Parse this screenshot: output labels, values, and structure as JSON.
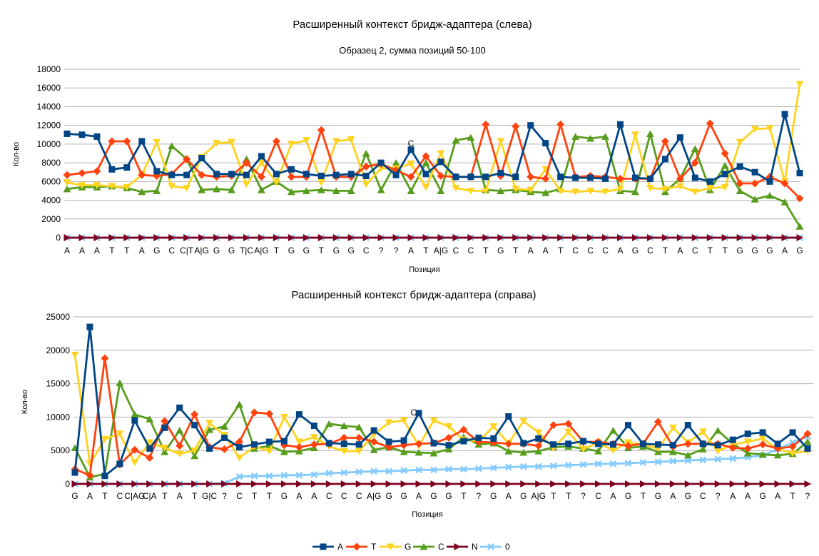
{
  "legend": [
    "A",
    "T",
    "G",
    "C",
    "N",
    "0"
  ],
  "colors": {
    "A": "#004586",
    "T": "#ff420e",
    "G": "#ffd320",
    "C": "#579d1c",
    "N": "#7e0021",
    "0": "#83caff"
  },
  "chart_data": [
    {
      "type": "line",
      "title": "Расширенный контекст бридж-адаптера (слева)",
      "subtitle": "Образец 2, сумма позиций 50-100",
      "xlabel": "Позиция",
      "ylabel": "Кол-во",
      "ylim": [
        0,
        18000
      ],
      "yticks": [
        0,
        2000,
        4000,
        6000,
        8000,
        10000,
        12000,
        14000,
        16000,
        18000
      ],
      "grid": true,
      "annotation": "C",
      "categories": [
        "A",
        "A",
        "A",
        "T",
        "T",
        "A",
        "G",
        "C",
        "C|T",
        "A|G",
        "G",
        "G",
        "T|C",
        "A|G",
        "T",
        "G",
        "G",
        "T",
        "G",
        "G",
        "C",
        "?",
        "?",
        "A",
        "T",
        "A|G",
        "C",
        "C",
        "T",
        "G",
        "T",
        "A",
        "A",
        "T",
        "C",
        "C",
        "C",
        "A",
        "G",
        "C",
        "T",
        "A",
        "C",
        "T",
        "T",
        "G",
        "G",
        "G",
        "A",
        "G"
      ],
      "series": [
        {
          "name": "A",
          "values": [
            11100,
            11000,
            10800,
            7300,
            7500,
            10300,
            7100,
            6700,
            6700,
            8500,
            6800,
            6800,
            6700,
            8700,
            6800,
            7300,
            6800,
            6600,
            6700,
            6800,
            6600,
            8000,
            6700,
            9400,
            6800,
            8100,
            6500,
            6500,
            6500,
            6900,
            6500,
            12000,
            10100,
            6500,
            6400,
            6400,
            6300,
            12100,
            6400,
            6300,
            8400,
            10700,
            6400,
            6000,
            6800,
            7600,
            7000,
            6000,
            13200,
            6900
          ]
        },
        {
          "name": "T",
          "values": [
            6700,
            6900,
            7100,
            10300,
            10300,
            6700,
            6600,
            6800,
            8400,
            6700,
            6500,
            6600,
            8000,
            6500,
            10300,
            6500,
            6500,
            11500,
            6500,
            6500,
            7600,
            7900,
            7200,
            6500,
            8700,
            6600,
            6500,
            6500,
            12100,
            6600,
            11900,
            6500,
            6300,
            12100,
            6500,
            6600,
            6500,
            6300,
            6300,
            6300,
            10300,
            6300,
            8000,
            12200,
            9000,
            5800,
            5800,
            6500,
            5800,
            4200
          ]
        },
        {
          "name": "G",
          "values": [
            5900,
            5600,
            5600,
            5500,
            5400,
            6700,
            10200,
            5500,
            5300,
            8600,
            10100,
            10200,
            5700,
            8000,
            5900,
            10000,
            10400,
            5900,
            10300,
            10500,
            5700,
            7400,
            7400,
            7900,
            5400,
            9000,
            5300,
            5000,
            5000,
            10300,
            5200,
            5100,
            7300,
            5000,
            4900,
            5000,
            4900,
            5200,
            11000,
            5300,
            5200,
            5500,
            4900,
            5300,
            5400,
            10200,
            11600,
            11700,
            6000,
            16400
          ]
        },
        {
          "name": "C",
          "values": [
            5200,
            5400,
            5400,
            5500,
            5300,
            4900,
            5000,
            9800,
            8400,
            5100,
            5200,
            5100,
            8400,
            5100,
            6000,
            4900,
            5000,
            5100,
            5000,
            5000,
            9000,
            5100,
            8000,
            5000,
            8000,
            5000,
            10400,
            10700,
            5100,
            5000,
            5100,
            4900,
            4800,
            5200,
            10800,
            10600,
            10800,
            5000,
            4900,
            11100,
            4900,
            6300,
            9500,
            5100,
            7700,
            5000,
            4100,
            4500,
            3800,
            1200
          ]
        },
        {
          "name": "N",
          "values": [
            0,
            0,
            0,
            0,
            0,
            0,
            0,
            0,
            0,
            0,
            0,
            0,
            0,
            0,
            0,
            0,
            0,
            0,
            0,
            0,
            0,
            0,
            0,
            0,
            0,
            0,
            0,
            0,
            0,
            0,
            0,
            0,
            0,
            0,
            0,
            0,
            0,
            0,
            0,
            0,
            0,
            0,
            0,
            0,
            0,
            0,
            0,
            0,
            0,
            0
          ]
        },
        {
          "name": "0",
          "values": [
            0,
            0,
            0,
            0,
            0,
            0,
            0,
            0,
            0,
            0,
            0,
            0,
            0,
            0,
            0,
            0,
            0,
            0,
            0,
            0,
            0,
            0,
            0,
            0,
            0,
            0,
            0,
            0,
            0,
            0,
            0,
            0,
            0,
            0,
            0,
            0,
            0,
            0,
            0,
            0,
            0,
            0,
            0,
            0,
            0,
            0,
            0,
            0,
            0,
            0
          ]
        }
      ]
    },
    {
      "type": "line",
      "title": "Расширенный контекст бридж-адаптера (справа)",
      "xlabel": "Позиция",
      "ylabel": "Кол-во",
      "ylim": [
        0,
        25000
      ],
      "yticks": [
        0,
        5000,
        10000,
        15000,
        20000,
        25000
      ],
      "grid": true,
      "annotation": "C",
      "categories": [
        "G",
        "A",
        "T",
        "C",
        "C|AG",
        "C|A",
        "T",
        "A",
        "T",
        "G|C",
        "?",
        "C",
        "T",
        "T",
        "G",
        "A",
        "A",
        "C",
        "C",
        "C",
        "A|G",
        "G",
        "G",
        "A",
        "G",
        "G",
        "T",
        "?",
        "G",
        "A",
        "G",
        "A|G",
        "T",
        "T",
        "?",
        "C",
        "A",
        "G",
        "T",
        "G",
        "A",
        "G",
        "C",
        "?",
        "A",
        "A",
        "G",
        "A",
        "T",
        "?"
      ],
      "series": [
        {
          "name": "A",
          "values": [
            1700,
            23500,
            1200,
            3000,
            9500,
            5300,
            8400,
            11400,
            8800,
            5300,
            6900,
            5500,
            5900,
            6300,
            6400,
            10400,
            8700,
            6100,
            6000,
            5900,
            8000,
            6300,
            6500,
            10600,
            6100,
            5800,
            6400,
            6900,
            6800,
            10100,
            6100,
            6800,
            5900,
            6000,
            6400,
            6000,
            5900,
            8800,
            6000,
            5900,
            5800,
            8800,
            6000,
            5800,
            6600,
            7500,
            7700,
            6000,
            7700,
            5300
          ]
        },
        {
          "name": "T",
          "values": [
            2200,
            1300,
            18800,
            2900,
            5100,
            3900,
            9400,
            5700,
            10400,
            5500,
            5200,
            6300,
            10700,
            10500,
            5800,
            5500,
            5900,
            6000,
            6900,
            6900,
            6300,
            5500,
            5800,
            6000,
            6100,
            6900,
            8100,
            6300,
            6200,
            6000,
            6000,
            5700,
            8800,
            9000,
            6300,
            6300,
            6000,
            5700,
            6000,
            9300,
            5600,
            6000,
            6000,
            6000,
            5400,
            5300,
            5900,
            5300,
            5600,
            7500
          ]
        },
        {
          "name": "G",
          "values": [
            19300,
            3000,
            6700,
            7500,
            3200,
            6200,
            5400,
            4500,
            5000,
            9100,
            7300,
            3900,
            5600,
            4900,
            10000,
            6300,
            7000,
            5600,
            4900,
            4900,
            7400,
            9200,
            9500,
            5700,
            9500,
            8600,
            6600,
            6400,
            8600,
            6100,
            9400,
            7700,
            5300,
            7800,
            5200,
            6200,
            5000,
            6200,
            5900,
            5300,
            8400,
            6200,
            7800,
            4900,
            5900,
            6300,
            6800,
            5200,
            4600,
            4900
          ]
        },
        {
          "name": "C",
          "values": [
            5400,
            1000,
            1500,
            15100,
            10400,
            9700,
            4800,
            8000,
            4200,
            8100,
            8600,
            11900,
            5300,
            5700,
            4800,
            4900,
            5400,
            9000,
            8700,
            8500,
            5100,
            5500,
            4800,
            4700,
            4600,
            5200,
            7000,
            5900,
            6100,
            4900,
            4700,
            4900,
            5500,
            5600,
            5300,
            4900,
            8000,
            5400,
            5600,
            4800,
            4800,
            4300,
            5200,
            8000,
            6000,
            4600,
            4400,
            4300,
            4500,
            6300
          ]
        },
        {
          "name": "N",
          "values": [
            0,
            0,
            0,
            0,
            0,
            0,
            0,
            0,
            0,
            0,
            0,
            0,
            0,
            0,
            0,
            0,
            0,
            0,
            0,
            0,
            0,
            0,
            0,
            0,
            0,
            0,
            0,
            0,
            0,
            0,
            0,
            0,
            0,
            0,
            0,
            0,
            0,
            0,
            0,
            0,
            0,
            0,
            0,
            0,
            0,
            0,
            0,
            0,
            0,
            0
          ]
        },
        {
          "name": "0",
          "values": [
            0,
            0,
            0,
            0,
            0,
            0,
            0,
            0,
            0,
            0,
            100,
            1100,
            1200,
            1200,
            1300,
            1300,
            1400,
            1600,
            1700,
            1800,
            1900,
            1900,
            2000,
            2100,
            2100,
            2200,
            2200,
            2300,
            2400,
            2500,
            2600,
            2600,
            2700,
            2800,
            2900,
            3000,
            3000,
            3100,
            3200,
            3300,
            3400,
            3500,
            3600,
            3700,
            3800,
            4000,
            4300,
            5200,
            6200,
            7100
          ]
        }
      ]
    }
  ]
}
